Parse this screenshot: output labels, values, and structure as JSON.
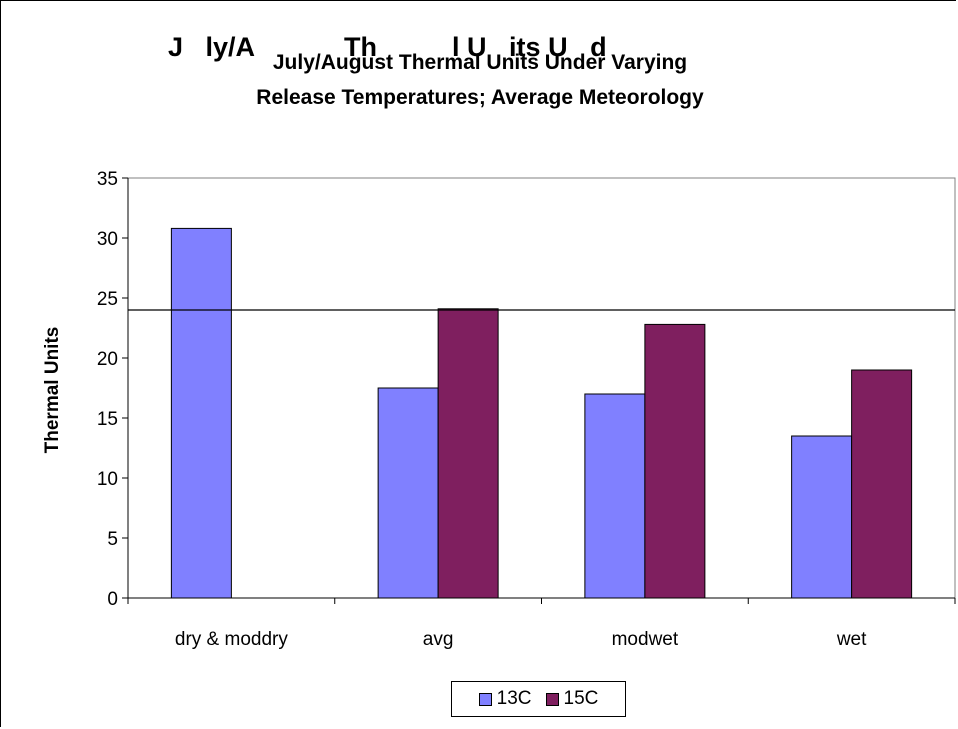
{
  "chart_data": {
    "type": "bar",
    "title": "July/August Thermal Units Under Varying",
    "subtitle": "Release Temperatures; Average Meteorology",
    "title_ghost": "J   ly/A            Th          l U   its U   d",
    "xlabel": "",
    "ylabel": "Thermal Units",
    "ylim": [
      0,
      35
    ],
    "yticks": [
      "0",
      "5",
      "10",
      "15",
      "20",
      "25",
      "30",
      "35"
    ],
    "categories": [
      "dry & moddry",
      "avg",
      "modwet",
      "wet"
    ],
    "series": [
      {
        "name": "13C",
        "color": "#8080ff",
        "values": [
          30.8,
          17.5,
          17.0,
          13.5
        ]
      },
      {
        "name": "15C",
        "color": "#7f1f5f",
        "values": [
          null,
          24.1,
          22.8,
          19.0
        ]
      }
    ],
    "reference_line": 24.0,
    "grid": false,
    "legend_position": "bottom"
  }
}
